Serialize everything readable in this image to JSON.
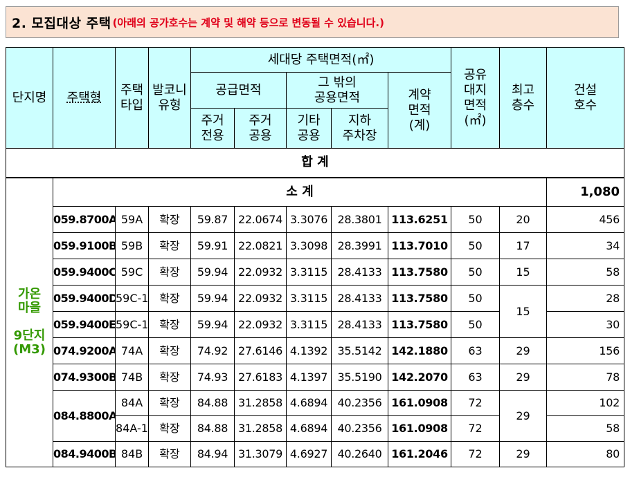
{
  "banner": {
    "title": "2. 모집대상 주택",
    "note": "(아래의 공가호수는 계약 및 해약 등으로 변동될 수 있습니다.)"
  },
  "headers": {
    "complex": "단지명",
    "housing_type": "주택형",
    "type_line1": "주택",
    "type_line2": "타입",
    "balcony_line1": "발코니",
    "balcony_line2": "유형",
    "area_group": "세대당 주택면적(㎡)",
    "supply_area": "공급면적",
    "other_common_line1": "그  밖의",
    "other_common_line2": "공용면적",
    "contract_area_line1": "계약",
    "contract_area_line2": "면적",
    "contract_area_line3": "(계)",
    "residential_exclusive_line1": "주거",
    "residential_exclusive_line2": "전용",
    "residential_common_line1": "주거",
    "residential_common_line2": "공용",
    "other_common_sub_line1": "기타",
    "other_common_sub_line2": "공용",
    "underground_line1": "지하",
    "underground_line2": "주차장",
    "land_line1": "공유",
    "land_line2": "대지",
    "land_line3": "면적",
    "land_line4": "(㎡)",
    "floors_line1": "최고",
    "floors_line2": "층수",
    "units_line1": "건설",
    "units_line2": "호수"
  },
  "total_label": "합  계",
  "site": {
    "line1": "가온",
    "line2": "마을",
    "line3": "9단지",
    "line4": "(M3)"
  },
  "subtotal": {
    "label": "소   계",
    "units": "1,080"
  },
  "rows": [
    {
      "code": "059.8700A",
      "type": "59A",
      "balcony": "확장",
      "excl": "59.87",
      "rescom": "22.0674",
      "othcom": "3.3076",
      "park": "28.3801",
      "contract": "113.6251",
      "land": "50",
      "floors": "20",
      "units": "456"
    },
    {
      "code": "059.9100B",
      "type": "59B",
      "balcony": "확장",
      "excl": "59.91",
      "rescom": "22.0821",
      "othcom": "3.3098",
      "park": "28.3991",
      "contract": "113.7010",
      "land": "50",
      "floors": "17",
      "units": "34"
    },
    {
      "code": "059.9400C",
      "type": "59C",
      "balcony": "확장",
      "excl": "59.94",
      "rescom": "22.0932",
      "othcom": "3.3115",
      "park": "28.4133",
      "contract": "113.7580",
      "land": "50",
      "floors": "15",
      "units": "58"
    },
    {
      "code": "059.9400D",
      "type": "59C-1",
      "balcony": "확장",
      "excl": "59.94",
      "rescom": "22.0932",
      "othcom": "3.3115",
      "park": "28.4133",
      "contract": "113.7580",
      "land": "50",
      "floors": "15",
      "units": "28"
    },
    {
      "code": "059.9400E",
      "type": "59C-1",
      "balcony": "확장",
      "excl": "59.94",
      "rescom": "22.0932",
      "othcom": "3.3115",
      "park": "28.4133",
      "contract": "113.7580",
      "land": "50",
      "floors": "",
      "units": "30"
    },
    {
      "code": "074.9200A",
      "type": "74A",
      "balcony": "확장",
      "excl": "74.92",
      "rescom": "27.6146",
      "othcom": "4.1392",
      "park": "35.5142",
      "contract": "142.1880",
      "land": "63",
      "floors": "29",
      "units": "156"
    },
    {
      "code": "074.9300B",
      "type": "74B",
      "balcony": "확장",
      "excl": "74.93",
      "rescom": "27.6183",
      "othcom": "4.1397",
      "park": "35.5190",
      "contract": "142.2070",
      "land": "63",
      "floors": "29",
      "units": "78"
    },
    {
      "code": "084.8800A",
      "type": "84A",
      "balcony": "확장",
      "excl": "84.88",
      "rescom": "31.2858",
      "othcom": "4.6894",
      "park": "40.2356",
      "contract": "161.0908",
      "land": "72",
      "floors": "29",
      "units": "102"
    },
    {
      "code": "",
      "type": "84A-1",
      "balcony": "확장",
      "excl": "84.88",
      "rescom": "31.2858",
      "othcom": "4.6894",
      "park": "40.2356",
      "contract": "161.0908",
      "land": "72",
      "floors": "",
      "units": "58"
    },
    {
      "code": "084.9400B",
      "type": "84B",
      "balcony": "확장",
      "excl": "84.94",
      "rescom": "31.3079",
      "othcom": "4.6927",
      "park": "40.2640",
      "contract": "161.2046",
      "land": "72",
      "floors": "29",
      "units": "80"
    }
  ]
}
